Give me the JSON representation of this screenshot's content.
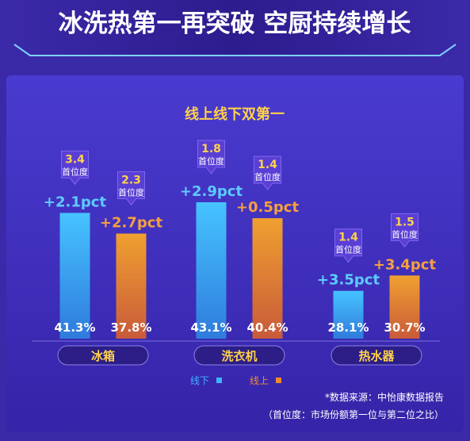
{
  "header": {
    "title": "冰洗热第一再突破 空厨持续增长"
  },
  "chart_data": {
    "type": "bar",
    "title": "线上线下双第一",
    "categories": [
      "冰箱",
      "洗衣机",
      "热水器"
    ],
    "series": [
      {
        "name": "线下",
        "color": "#3fb3ff",
        "values": [
          41.3,
          43.1,
          28.1
        ],
        "value_labels": [
          "41.3%",
          "43.1%",
          "28.1%"
        ],
        "change_labels": [
          "+2.1pct",
          "+2.9pct",
          "+3.5pct"
        ],
        "ratio_labels": [
          "3.4",
          "1.8",
          "1.4"
        ]
      },
      {
        "name": "线上",
        "color": "#f08a2a",
        "values": [
          37.8,
          40.4,
          30.7
        ],
        "value_labels": [
          "37.8%",
          "40.4%",
          "30.7%"
        ],
        "change_labels": [
          "+2.7pct",
          "+0.5pct",
          "+3.4pct"
        ],
        "ratio_labels": [
          "2.3",
          "1.4",
          "1.5"
        ]
      }
    ],
    "ratio_caption": "首位度",
    "legend_position": "bottom"
  },
  "legend": {
    "offline": "线下",
    "online": "线上",
    "offline_color": "#3fb3ff",
    "online_color": "#f08a2a"
  },
  "notes": {
    "source": "*数据来源：中怡康数据报告",
    "definition": "（首位度：市场份额第一位与第二位之比）"
  }
}
